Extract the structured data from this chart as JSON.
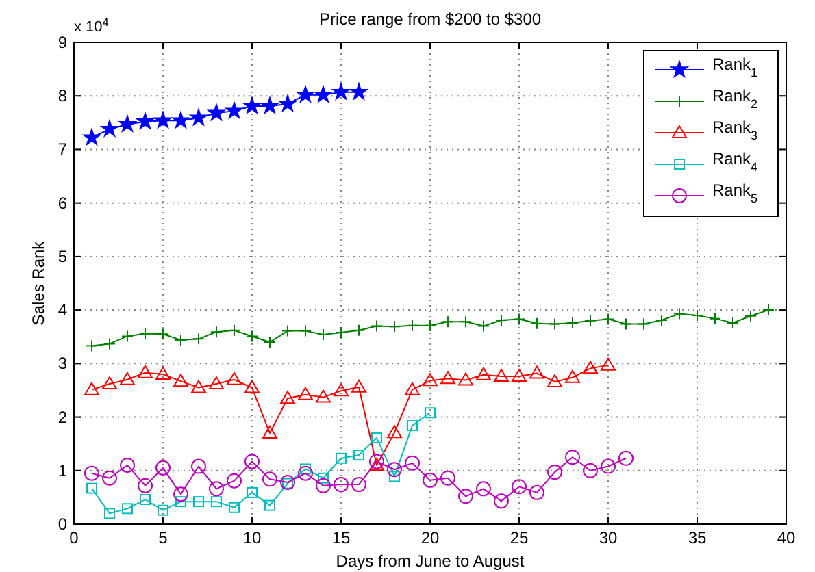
{
  "chart_data": {
    "type": "line",
    "title": "Price range from $200 to $300",
    "xlabel": "Days from June to August",
    "ylabel": "Sales Rank",
    "annotations": [
      "x 10$^{4}$"
    ],
    "xlim": [
      0,
      40
    ],
    "xticks": [
      0,
      5,
      10,
      15,
      20,
      25,
      30,
      35,
      40
    ],
    "ylim": [
      0,
      9
    ],
    "yticks": [
      0,
      1,
      2,
      3,
      4,
      5,
      6,
      7,
      8,
      9
    ],
    "grid": true,
    "legend": "top right",
    "line_style": "solid",
    "series": [
      {
        "name": "Rank$_{1}$",
        "color": "#0000ff",
        "marker": "star",
        "x": [
          1,
          2,
          3,
          4,
          5,
          6,
          7,
          8,
          9,
          10,
          11,
          12,
          13,
          14,
          15,
          16
        ],
        "values": [
          7.22,
          7.38,
          7.47,
          7.52,
          7.54,
          7.54,
          7.59,
          7.68,
          7.72,
          7.81,
          7.81,
          7.85,
          8.02,
          8.02,
          8.07,
          8.07
        ]
      },
      {
        "name": "Rank$_{2}$",
        "color": "#008000",
        "marker": "cross",
        "x": [
          1,
          2,
          3,
          4,
          5,
          6,
          7,
          8,
          9,
          10,
          11,
          12,
          13,
          14,
          15,
          16,
          17,
          18,
          19,
          20,
          21,
          22,
          23,
          24,
          25,
          26,
          27,
          28,
          29,
          30,
          31,
          32,
          33,
          34,
          35,
          36,
          37,
          38,
          39
        ],
        "values": [
          3.33,
          3.37,
          3.51,
          3.56,
          3.55,
          3.44,
          3.46,
          3.59,
          3.62,
          3.51,
          3.4,
          3.61,
          3.61,
          3.54,
          3.58,
          3.62,
          3.7,
          3.69,
          3.71,
          3.71,
          3.78,
          3.78,
          3.7,
          3.81,
          3.83,
          3.75,
          3.74,
          3.76,
          3.8,
          3.83,
          3.74,
          3.74,
          3.81,
          3.93,
          3.9,
          3.84,
          3.76,
          3.89,
          4.0
        ]
      },
      {
        "name": "Rank$_{3}$",
        "color": "#ff0000",
        "marker": "triangle",
        "x": [
          1,
          2,
          3,
          4,
          5,
          6,
          7,
          8,
          9,
          10,
          11,
          12,
          13,
          14,
          15,
          16,
          17,
          18,
          19,
          20,
          21,
          22,
          23,
          24,
          25,
          26,
          27,
          28,
          29,
          30
        ],
        "values": [
          2.51,
          2.62,
          2.7,
          2.83,
          2.8,
          2.67,
          2.55,
          2.62,
          2.7,
          2.55,
          1.7,
          2.35,
          2.42,
          2.37,
          2.49,
          2.56,
          1.1,
          1.71,
          2.51,
          2.68,
          2.72,
          2.69,
          2.79,
          2.76,
          2.76,
          2.82,
          2.66,
          2.74,
          2.91,
          2.97
        ]
      },
      {
        "name": "Rank$_{4}$",
        "color": "#00bfbf",
        "marker": "square",
        "x": [
          1,
          2,
          3,
          4,
          5,
          6,
          7,
          8,
          9,
          10,
          11,
          12,
          13,
          14,
          15,
          16,
          17,
          18,
          19,
          20
        ],
        "values": [
          0.67,
          0.2,
          0.29,
          0.46,
          0.26,
          0.42,
          0.42,
          0.42,
          0.31,
          0.59,
          0.35,
          0.76,
          1.03,
          0.86,
          1.23,
          1.29,
          1.61,
          0.89,
          1.84,
          2.08
        ]
      },
      {
        "name": "Rank$_{5}$",
        "color": "#bf00bf",
        "marker": "circle",
        "x": [
          1,
          2,
          3,
          4,
          5,
          6,
          7,
          8,
          9,
          10,
          11,
          12,
          13,
          14,
          15,
          16,
          17,
          18,
          19,
          20,
          21,
          22,
          23,
          24,
          25,
          26,
          27,
          28,
          29,
          30,
          31
        ],
        "values": [
          0.95,
          0.86,
          1.1,
          0.72,
          1.05,
          0.56,
          1.08,
          0.66,
          0.81,
          1.17,
          0.84,
          0.78,
          0.95,
          0.72,
          0.74,
          0.74,
          1.17,
          1.02,
          1.14,
          0.82,
          0.86,
          0.52,
          0.66,
          0.43,
          0.7,
          0.59,
          0.97,
          1.25,
          1.0,
          1.08,
          1.23
        ]
      }
    ]
  }
}
